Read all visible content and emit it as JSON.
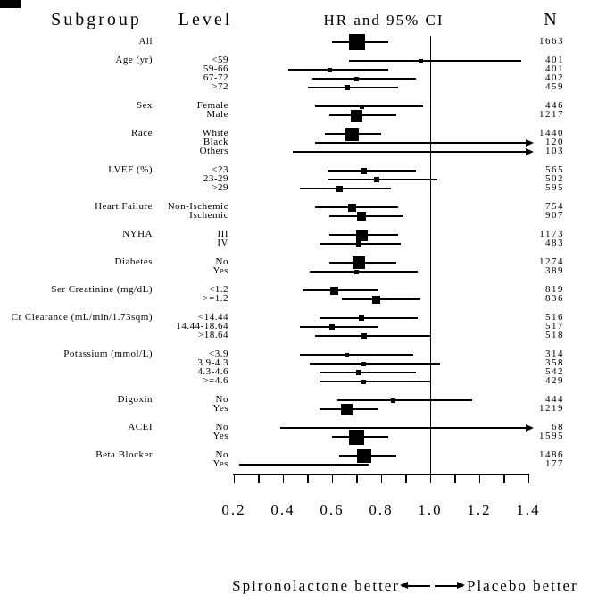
{
  "chart_data": {
    "type": "forest",
    "columns": {
      "subgroup": "Subgroup",
      "level": "Level",
      "hr_ci": "HR and 95% CI",
      "n": "N"
    },
    "x_axis": {
      "range": [
        0.2,
        1.4
      ],
      "tick_values": [
        0.2,
        0.4,
        0.6,
        0.8,
        1.0,
        1.2,
        1.4
      ],
      "tick_labels": [
        "0.2",
        "0.4",
        "0.6",
        "0.8",
        "1.0",
        "1.2",
        "1.4"
      ],
      "minor_tick_values": [
        0.2,
        0.3,
        0.4,
        0.5,
        0.6,
        0.7,
        0.8,
        0.9,
        1.0,
        1.1,
        1.2,
        1.3,
        1.4
      ],
      "reference_line": 1.0
    },
    "footer": {
      "left": "Spironolactone better",
      "right": "Placebo better"
    },
    "colors": {
      "foreground": "#000000",
      "background": "#ffffff"
    },
    "groups": [
      {
        "subgroup": "All",
        "levels": [
          {
            "label": "",
            "n": 1663,
            "hr": 0.7,
            "lo": 0.6,
            "hi": 0.83,
            "arrow": false
          }
        ]
      },
      {
        "subgroup": "Age (yr)",
        "levels": [
          {
            "label": "<59",
            "n": 401,
            "hr": 0.96,
            "lo": 0.67,
            "hi": 1.37,
            "arrow": false
          },
          {
            "label": "59-66",
            "n": 401,
            "hr": 0.59,
            "lo": 0.42,
            "hi": 0.83,
            "arrow": false
          },
          {
            "label": "67-72",
            "n": 402,
            "hr": 0.7,
            "lo": 0.52,
            "hi": 0.94,
            "arrow": false
          },
          {
            "label": ">72",
            "n": 459,
            "hr": 0.66,
            "lo": 0.5,
            "hi": 0.87,
            "arrow": false
          }
        ]
      },
      {
        "subgroup": "Sex",
        "levels": [
          {
            "label": "Female",
            "n": 446,
            "hr": 0.72,
            "lo": 0.53,
            "hi": 0.97,
            "arrow": false
          },
          {
            "label": "Male",
            "n": 1217,
            "hr": 0.7,
            "lo": 0.59,
            "hi": 0.86,
            "arrow": false
          }
        ]
      },
      {
        "subgroup": "Race",
        "levels": [
          {
            "label": "White",
            "n": 1440,
            "hr": 0.68,
            "lo": 0.57,
            "hi": 0.8,
            "arrow": false
          },
          {
            "label": "Black",
            "n": 120,
            "hr": 0.9,
            "lo": 0.53,
            "hi": 1.45,
            "arrow": true
          },
          {
            "label": "Others",
            "n": 103,
            "hr": 0.85,
            "lo": 0.44,
            "hi": 1.45,
            "arrow": true
          }
        ]
      },
      {
        "subgroup": "LVEF (%)",
        "levels": [
          {
            "label": "<23",
            "n": 565,
            "hr": 0.73,
            "lo": 0.58,
            "hi": 0.94,
            "arrow": false
          },
          {
            "label": "23-29",
            "n": 502,
            "hr": 0.78,
            "lo": 0.58,
            "hi": 1.03,
            "arrow": false
          },
          {
            "label": ">29",
            "n": 595,
            "hr": 0.63,
            "lo": 0.47,
            "hi": 0.84,
            "arrow": false
          }
        ]
      },
      {
        "subgroup": "Heart Failure",
        "levels": [
          {
            "label": "Non-Ischemic",
            "n": 754,
            "hr": 0.68,
            "lo": 0.53,
            "hi": 0.87,
            "arrow": false
          },
          {
            "label": "Ischemic",
            "n": 907,
            "hr": 0.72,
            "lo": 0.59,
            "hi": 0.89,
            "arrow": false
          }
        ]
      },
      {
        "subgroup": "NYHA",
        "levels": [
          {
            "label": "III",
            "n": 1173,
            "hr": 0.72,
            "lo": 0.59,
            "hi": 0.87,
            "arrow": false
          },
          {
            "label": "IV",
            "n": 483,
            "hr": 0.71,
            "lo": 0.55,
            "hi": 0.88,
            "arrow": false
          }
        ]
      },
      {
        "subgroup": "Diabetes",
        "levels": [
          {
            "label": "No",
            "n": 1274,
            "hr": 0.71,
            "lo": 0.59,
            "hi": 0.86,
            "arrow": false
          },
          {
            "label": "Yes",
            "n": 389,
            "hr": 0.7,
            "lo": 0.51,
            "hi": 0.95,
            "arrow": false
          }
        ]
      },
      {
        "subgroup": "Ser Creatinine (mg/dL)",
        "levels": [
          {
            "label": "<1.2",
            "n": 819,
            "hr": 0.61,
            "lo": 0.48,
            "hi": 0.79,
            "arrow": false
          },
          {
            "label": ">=1.2",
            "n": 836,
            "hr": 0.78,
            "lo": 0.64,
            "hi": 0.96,
            "arrow": false
          }
        ]
      },
      {
        "subgroup": "Cr Clearance (mL/min/1.73sqm)",
        "levels": [
          {
            "label": "<14.44",
            "n": 516,
            "hr": 0.72,
            "lo": 0.55,
            "hi": 0.95,
            "arrow": false
          },
          {
            "label": "14.44-18.64",
            "n": 517,
            "hr": 0.6,
            "lo": 0.47,
            "hi": 0.79,
            "arrow": false
          },
          {
            "label": ">18.64",
            "n": 518,
            "hr": 0.73,
            "lo": 0.53,
            "hi": 1.0,
            "arrow": false
          }
        ]
      },
      {
        "subgroup": "Potassium (mmol/L)",
        "levels": [
          {
            "label": "<3.9",
            "n": 314,
            "hr": 0.66,
            "lo": 0.47,
            "hi": 0.93,
            "arrow": false
          },
          {
            "label": "3.9-4.3",
            "n": 358,
            "hr": 0.73,
            "lo": 0.51,
            "hi": 1.04,
            "arrow": false
          },
          {
            "label": "4.3-4.6",
            "n": 542,
            "hr": 0.71,
            "lo": 0.55,
            "hi": 0.94,
            "arrow": false
          },
          {
            "label": ">=4.6",
            "n": 429,
            "hr": 0.73,
            "lo": 0.55,
            "hi": 1.0,
            "arrow": false
          }
        ]
      },
      {
        "subgroup": "Digoxin",
        "levels": [
          {
            "label": "No",
            "n": 444,
            "hr": 0.85,
            "lo": 0.62,
            "hi": 1.17,
            "arrow": false
          },
          {
            "label": "Yes",
            "n": 1219,
            "hr": 0.66,
            "lo": 0.55,
            "hi": 0.79,
            "arrow": false
          }
        ]
      },
      {
        "subgroup": "ACEI",
        "levels": [
          {
            "label": "No",
            "n": 68,
            "hr": 0.85,
            "lo": 0.39,
            "hi": 1.45,
            "arrow": true
          },
          {
            "label": "Yes",
            "n": 1595,
            "hr": 0.7,
            "lo": 0.6,
            "hi": 0.83,
            "arrow": false
          }
        ]
      },
      {
        "subgroup": "Beta Blocker",
        "levels": [
          {
            "label": "No",
            "n": 1486,
            "hr": 0.73,
            "lo": 0.63,
            "hi": 0.86,
            "arrow": false
          },
          {
            "label": "Yes",
            "n": 177,
            "hr": 0.6,
            "lo": 0.22,
            "hi": 0.75,
            "arrow": false
          }
        ]
      }
    ]
  }
}
